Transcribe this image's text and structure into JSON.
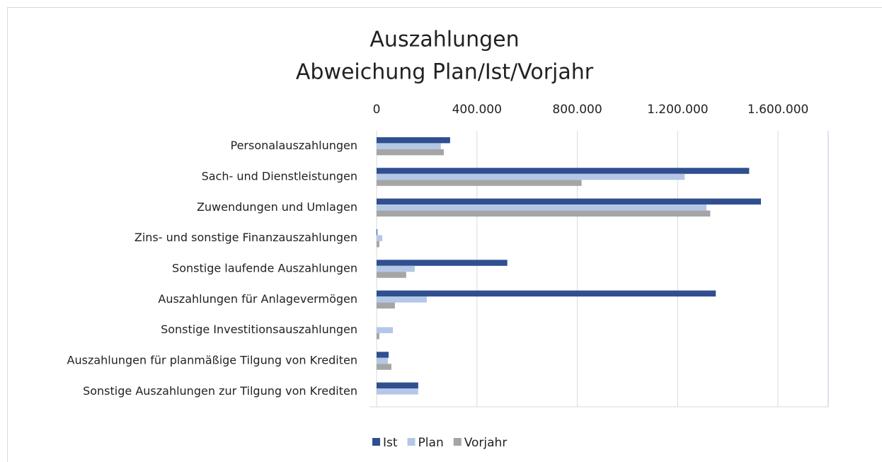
{
  "chart_data": {
    "type": "barh",
    "title": "Auszahlungen",
    "subtitle": "Abweichung Plan/Ist/Vorjahr",
    "categories": [
      "Personalauszahlungen",
      "Sach- und Dienstleistungen",
      "Zuwendungen und Umlagen",
      "Zins- und sonstige Finanzauszahlungen",
      "Sonstige laufende Auszahlungen",
      "Auszahlungen für Anlagevermögen",
      "Sonstige Investitionsauszahlungen",
      "Auszahlungen für planmäßige Tilgung von Krediten",
      "Sonstige Auszahlungen zur Tilgung von Krediten"
    ],
    "series": [
      {
        "name": "Ist",
        "color": "#2f4f8f",
        "values": [
          293000,
          1485000,
          1532000,
          3000,
          521000,
          1352000,
          0,
          48000,
          166000
        ]
      },
      {
        "name": "Plan",
        "color": "#b4c7e7",
        "values": [
          256000,
          1228000,
          1315000,
          23000,
          152000,
          200000,
          65000,
          45000,
          166000
        ]
      },
      {
        "name": "Vorjahr",
        "color": "#a5a5a5",
        "values": [
          268000,
          817000,
          1330000,
          11000,
          118000,
          73000,
          11000,
          59000,
          0
        ]
      }
    ],
    "xlim": [
      0,
      1800000
    ],
    "xticks": [
      0,
      {
        "value": 400000,
        "label": "400.000"
      },
      {
        "value": 800000,
        "label": "800.000"
      },
      {
        "value": 1200000,
        "label": "1.200.000"
      },
      {
        "value": 1600000,
        "label": "1.600.000"
      }
    ],
    "grid": true,
    "legend": "bottom"
  }
}
